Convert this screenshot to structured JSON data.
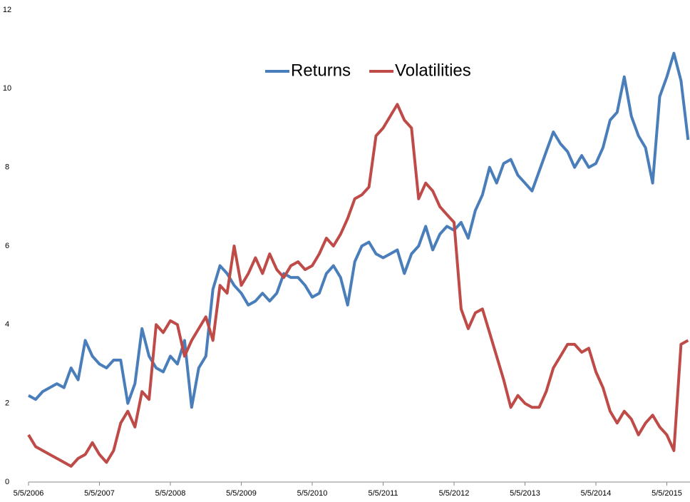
{
  "chart_data": {
    "type": "line",
    "categories": [
      "5/5/2006",
      null,
      null,
      null,
      null,
      null,
      null,
      null,
      null,
      null,
      "5/5/2007",
      null,
      null,
      null,
      null,
      null,
      null,
      null,
      null,
      null,
      "5/5/2008",
      null,
      null,
      null,
      null,
      null,
      null,
      null,
      null,
      null,
      "5/5/2009",
      null,
      null,
      null,
      null,
      null,
      null,
      null,
      null,
      null,
      "5/5/2010",
      null,
      null,
      null,
      null,
      null,
      null,
      null,
      null,
      null,
      "5/5/2011",
      null,
      null,
      null,
      null,
      null,
      null,
      null,
      null,
      null,
      "5/5/2012",
      null,
      null,
      null,
      null,
      null,
      null,
      null,
      null,
      null,
      "5/5/2013",
      null,
      null,
      null,
      null,
      null,
      null,
      null,
      null,
      null,
      "5/5/2014",
      null,
      null,
      null,
      null,
      null,
      null,
      null,
      null,
      null,
      "5/5/2015",
      null,
      null,
      null
    ],
    "series": [
      {
        "name": "Returns",
        "color": "#4a7ebb",
        "values": [
          2.2,
          2.1,
          2.3,
          2.4,
          2.5,
          2.4,
          2.9,
          2.6,
          3.6,
          3.2,
          3.0,
          2.9,
          3.1,
          3.1,
          2.0,
          2.5,
          3.9,
          3.2,
          2.9,
          2.8,
          3.2,
          3.0,
          3.6,
          1.9,
          2.9,
          3.2,
          4.9,
          5.5,
          5.3,
          5.0,
          4.8,
          4.5,
          4.6,
          4.8,
          4.6,
          4.8,
          5.3,
          5.2,
          5.2,
          5.0,
          4.7,
          4.8,
          5.3,
          5.5,
          5.2,
          4.5,
          5.6,
          6.0,
          6.1,
          5.8,
          5.7,
          5.8,
          5.9,
          5.3,
          5.8,
          6.0,
          6.5,
          5.9,
          6.3,
          6.5,
          6.4,
          6.6,
          6.2,
          6.9,
          7.3,
          8.0,
          7.6,
          8.1,
          8.2,
          7.8,
          7.6,
          7.4,
          7.9,
          8.4,
          8.9,
          8.6,
          8.4,
          8.0,
          8.3,
          8.0,
          8.1,
          8.5,
          9.2,
          9.4,
          10.3,
          9.3,
          8.8,
          8.5,
          7.6,
          9.8,
          10.3,
          10.9,
          10.2,
          8.7
        ]
      },
      {
        "name": "Volatilities",
        "color": "#be4b48",
        "values": [
          1.2,
          0.9,
          0.8,
          0.7,
          0.6,
          0.5,
          0.4,
          0.6,
          0.7,
          1.0,
          0.7,
          0.5,
          0.8,
          1.5,
          1.8,
          1.4,
          2.3,
          2.1,
          4.0,
          3.8,
          4.1,
          4.0,
          3.2,
          3.6,
          3.9,
          4.2,
          3.6,
          5.0,
          4.8,
          6.0,
          5.0,
          5.3,
          5.7,
          5.3,
          5.8,
          5.4,
          5.2,
          5.5,
          5.6,
          5.4,
          5.5,
          5.8,
          6.2,
          6.0,
          6.3,
          6.7,
          7.2,
          7.3,
          7.5,
          8.8,
          9.0,
          9.3,
          9.6,
          9.2,
          9.0,
          7.2,
          7.6,
          7.4,
          7.0,
          6.8,
          6.6,
          4.4,
          3.9,
          4.3,
          4.4,
          3.8,
          3.2,
          2.6,
          1.9,
          2.2,
          2.0,
          1.9,
          1.9,
          2.3,
          2.9,
          3.2,
          3.5,
          3.5,
          3.3,
          3.4,
          2.8,
          2.4,
          1.8,
          1.5,
          1.8,
          1.6,
          1.2,
          1.5,
          1.7,
          1.4,
          1.2,
          0.8,
          3.5,
          3.6
        ]
      }
    ],
    "ylim": [
      0,
      12
    ],
    "yticks": [
      0,
      2,
      4,
      6,
      8,
      10,
      12
    ],
    "legend": "top"
  }
}
